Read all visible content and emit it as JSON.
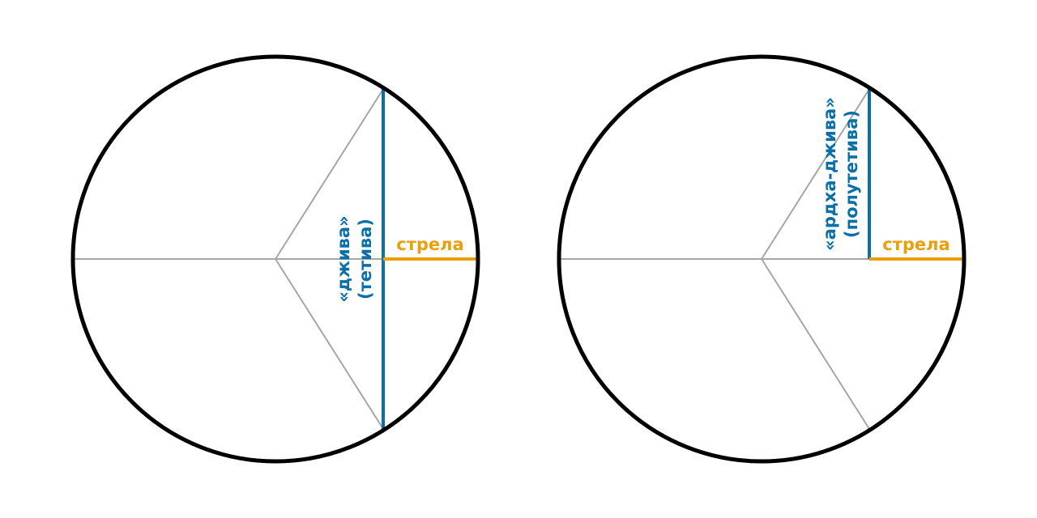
{
  "colors": {
    "circle": "#000000",
    "radius_lines": "#a6a6a6",
    "chord": "#0a6fa8",
    "arrow": "#e8a10c"
  },
  "left_diagram": {
    "chord_label_line1": "«джива»",
    "chord_label_line2": "(тетива)",
    "arrow_label": "стрела"
  },
  "right_diagram": {
    "chord_label_line1": "«ардха-джива»",
    "chord_label_line2": "(полутетива)",
    "arrow_label": "стрела"
  }
}
